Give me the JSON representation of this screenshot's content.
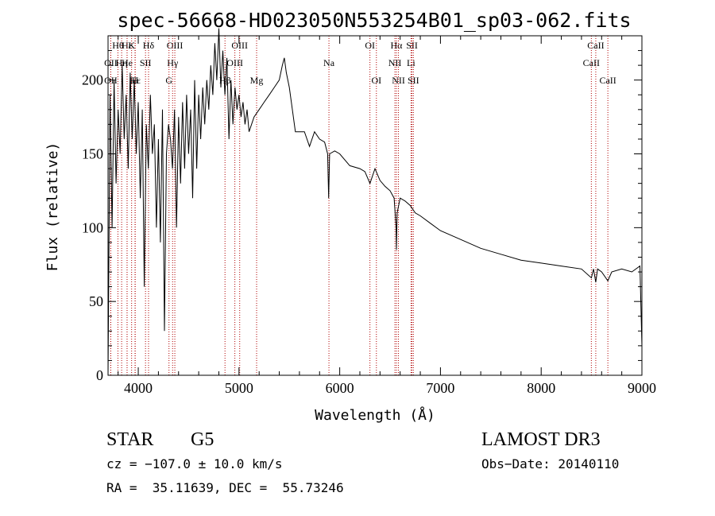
{
  "chart_data": {
    "type": "line",
    "title": "spec-56668-HD023050N553254B01_sp03-062.fits",
    "xlabel": "Wavelength (Å)",
    "ylabel": "Flux (relative)",
    "xlim": [
      3700,
      9000
    ],
    "ylim": [
      0,
      230
    ],
    "x_ticks": [
      4000,
      5000,
      6000,
      7000,
      8000,
      9000
    ],
    "y_ticks": [
      0,
      50,
      100,
      150,
      200
    ],
    "series": [
      {
        "name": "flux",
        "x": [
          3700,
          3720,
          3740,
          3760,
          3780,
          3800,
          3820,
          3840,
          3860,
          3880,
          3900,
          3920,
          3940,
          3960,
          3980,
          4000,
          4020,
          4040,
          4060,
          4080,
          4100,
          4120,
          4140,
          4160,
          4180,
          4200,
          4220,
          4240,
          4260,
          4280,
          4300,
          4320,
          4340,
          4360,
          4380,
          4400,
          4420,
          4440,
          4460,
          4480,
          4500,
          4520,
          4540,
          4560,
          4580,
          4600,
          4620,
          4640,
          4660,
          4680,
          4700,
          4720,
          4740,
          4760,
          4780,
          4800,
          4820,
          4840,
          4860,
          4880,
          4900,
          4920,
          4940,
          4960,
          4980,
          5000,
          5020,
          5040,
          5060,
          5080,
          5100,
          5150,
          5200,
          5250,
          5300,
          5350,
          5400,
          5430,
          5450,
          5470,
          5500,
          5530,
          5560,
          5600,
          5650,
          5700,
          5750,
          5800,
          5850,
          5880,
          5890,
          5900,
          5950,
          6000,
          6100,
          6200,
          6250,
          6300,
          6350,
          6400,
          6450,
          6500,
          6540,
          6560,
          6563,
          6570,
          6600,
          6650,
          6700,
          6750,
          6800,
          6900,
          7000,
          7200,
          7400,
          7600,
          7800,
          8000,
          8200,
          8400,
          8498,
          8520,
          8542,
          8560,
          8600,
          8662,
          8700,
          8800,
          8900,
          8980,
          9000
        ],
        "values": [
          0,
          190,
          100,
          200,
          130,
          180,
          150,
          210,
          160,
          190,
          140,
          205,
          160,
          200,
          150,
          185,
          120,
          180,
          60,
          170,
          140,
          190,
          150,
          170,
          100,
          160,
          90,
          180,
          30,
          150,
          170,
          160,
          140,
          180,
          100,
          175,
          130,
          185,
          140,
          190,
          150,
          180,
          120,
          200,
          140,
          190,
          160,
          195,
          170,
          200,
          180,
          210,
          190,
          225,
          200,
          235,
          195,
          220,
          190,
          215,
          160,
          200,
          170,
          195,
          180,
          190,
          175,
          185,
          170,
          180,
          165,
          175,
          180,
          185,
          190,
          195,
          200,
          210,
          215,
          205,
          195,
          180,
          165,
          165,
          165,
          155,
          165,
          160,
          158,
          150,
          120,
          150,
          152,
          150,
          142,
          140,
          138,
          130,
          140,
          132,
          128,
          125,
          120,
          100,
          85,
          110,
          120,
          118,
          115,
          110,
          108,
          103,
          98,
          92,
          86,
          82,
          78,
          76,
          74,
          72,
          66,
          72,
          63,
          72,
          70,
          64,
          70,
          72,
          70,
          74,
          20
        ]
      }
    ],
    "spectral_lines": [
      {
        "label": "Hθ",
        "x": 3798,
        "row": 1
      },
      {
        "label": "OII",
        "x": 3727,
        "row": 2
      },
      {
        "label": "OII",
        "x": 3727,
        "row": 3
      },
      {
        "label": "Hη",
        "x": 3835,
        "row": 2
      },
      {
        "label": "Hε",
        "x": 3889,
        "row": 1
      },
      {
        "label": "He",
        "x": 3889,
        "row": 2
      },
      {
        "label": "Hε",
        "x": 3970,
        "row": 3
      },
      {
        "label": "K",
        "x": 3934,
        "row": 1
      },
      {
        "label": "H",
        "x": 3968,
        "row": 3
      },
      {
        "label": "SII",
        "x": 4072,
        "row": 2
      },
      {
        "label": "Hδ",
        "x": 4102,
        "row": 1
      },
      {
        "label": "OIII",
        "x": 4363,
        "row": 1
      },
      {
        "label": "Hγ",
        "x": 4341,
        "row": 2
      },
      {
        "label": "G",
        "x": 4305,
        "row": 3
      },
      {
        "label": "Hβ",
        "x": 4861,
        "row": 3
      },
      {
        "label": "OIII",
        "x": 5007,
        "row": 1
      },
      {
        "label": "OIII",
        "x": 4959,
        "row": 2
      },
      {
        "label": "Mg",
        "x": 5175,
        "row": 3
      },
      {
        "label": "Na",
        "x": 5893,
        "row": 2
      },
      {
        "label": "OI",
        "x": 6300,
        "row": 1
      },
      {
        "label": "OI",
        "x": 6364,
        "row": 3
      },
      {
        "label": "Hα",
        "x": 6563,
        "row": 1
      },
      {
        "label": "NII",
        "x": 6548,
        "row": 2
      },
      {
        "label": "NII",
        "x": 6583,
        "row": 3
      },
      {
        "label": "SII",
        "x": 6717,
        "row": 1
      },
      {
        "label": "Li",
        "x": 6708,
        "row": 2
      },
      {
        "label": "SII",
        "x": 6731,
        "row": 3
      },
      {
        "label": "CaII",
        "x": 8542,
        "row": 1
      },
      {
        "label": "CaII",
        "x": 8498,
        "row": 2
      },
      {
        "label": "CaII",
        "x": 8662,
        "row": 3
      }
    ]
  },
  "info": {
    "object_class": "STAR",
    "subclass": "G5",
    "survey": "LAMOST DR3",
    "cz": "cz = −107.0 ± 10.0 km/s",
    "obs_date": "Obs−Date: 20140110",
    "coords": "RA =  35.11639, DEC =  55.73246"
  }
}
